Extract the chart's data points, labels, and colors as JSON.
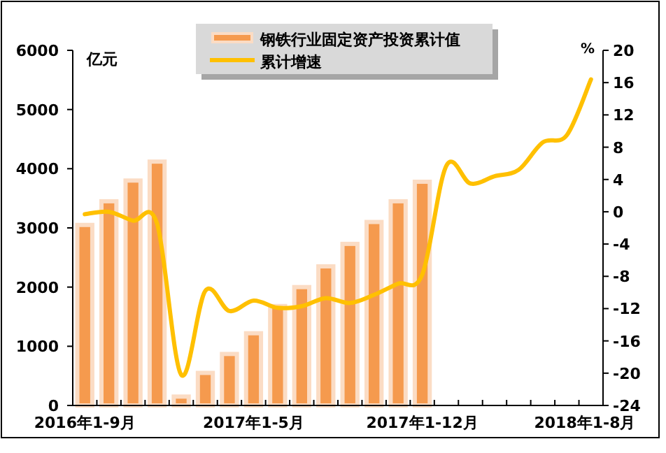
{
  "chart_data": {
    "type": "bar",
    "ylabel": "亿元",
    "y2label": "%",
    "legend": "top",
    "grid": false,
    "categories": [
      "2016年1-9月",
      null,
      null,
      null,
      null,
      null,
      null,
      "2017年1-5月",
      null,
      null,
      null,
      null,
      null,
      null,
      "2017年1-12月",
      null,
      null,
      null,
      null,
      null,
      null,
      "2018年1-8月"
    ],
    "series": [
      {
        "name": "钢铁行业固定资产投资累计值",
        "color": "#f59a4e",
        "values": [
          3050,
          3450,
          3800,
          4120,
          150,
          550,
          870,
          1220,
          1680,
          2000,
          2350,
          2730,
          3100,
          3450,
          3780,
          null,
          null,
          null,
          null,
          null,
          null,
          null
        ]
      },
      {
        "name": "累计增速",
        "type": "line",
        "axis": "y2",
        "color": "#ffc000",
        "values": [
          -0.3,
          0,
          -1.1,
          -1.5,
          -20.2,
          -9.8,
          -12.3,
          -11,
          -11.9,
          -11.7,
          -10.7,
          -11.3,
          -10.3,
          -8.9,
          -7.8,
          5.7,
          3.5,
          4.4,
          5.2,
          8.6,
          9.5,
          16.4
        ]
      }
    ],
    "ylim": [
      0,
      6000
    ],
    "yticks": [
      0,
      1000,
      2000,
      3000,
      4000,
      5000,
      6000
    ],
    "y2lim": [
      -24,
      20
    ],
    "y2ticks": [
      20,
      16,
      12,
      8,
      4,
      0,
      -4,
      -8,
      -12,
      -16,
      -20,
      -24
    ]
  }
}
